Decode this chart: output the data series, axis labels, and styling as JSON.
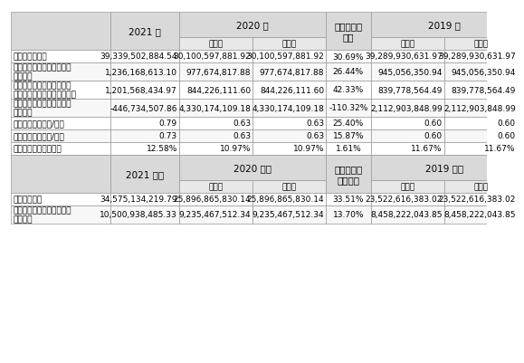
{
  "header_bg": "#d9d9d9",
  "subheader_bg": "#e8e8e8",
  "row_bg_odd": "#ffffff",
  "row_bg_even": "#f5f5f5",
  "border_color": "#999999",
  "text_color": "#000000",
  "font_size": 6.5,
  "header_font_size": 7.5,
  "col_headers_row1": [
    "",
    "2021 年",
    "2020 年",
    "",
    "本年比上年\n增减",
    "2019 年",
    ""
  ],
  "col_headers_row2": [
    "",
    "",
    "调整前",
    "调整后",
    "调整后",
    "调整前",
    "调整后"
  ],
  "col_headers2_row1": [
    "",
    "2021 年末",
    "2020 年末",
    "",
    "本年末比上\n年末增减",
    "2019 年末",
    ""
  ],
  "col_headers2_row2": [
    "",
    "",
    "调整前",
    "调整后",
    "调整后",
    "调整前",
    "调整后"
  ],
  "rows1": [
    [
      "营业收入（元）",
      "39,339,502,884.54",
      "30,100,597,881.92",
      "30,100,597,881.92",
      "30.69%",
      "39,289,930,631.97",
      "39,289,930,631.97"
    ],
    [
      "归属于上市公司股东的净利\n润（元）",
      "1,236,168,613.10",
      "977,674,817.88",
      "977,674,817.88",
      "26.44%",
      "945,056,350.94",
      "945,056,350.94"
    ],
    [
      "归属于上市公司股东的扣除\n非经常性损益的净利润（元）",
      "1,201,568,434.97",
      "844,226,111.60",
      "844,226,111.60",
      "42.33%",
      "839,778,564.49",
      "839,778,564.49"
    ],
    [
      "经营活动产生的现金流量净\n额（元）",
      "-446,734,507.86",
      "4,330,174,109.18",
      "4,330,174,109.18",
      "-110.32%",
      "2,112,903,848.99",
      "2,112,903,848.99"
    ],
    [
      "基本每股收益（元/股）",
      "0.79",
      "0.63",
      "0.63",
      "25.40%",
      "0.60",
      "0.60"
    ],
    [
      "稀释每股收益（元/股）",
      "0.73",
      "0.63",
      "0.63",
      "15.87%",
      "0.60",
      "0.60"
    ],
    [
      "加权平均净资产收益率",
      "12.58%",
      "10.97%",
      "10.97%",
      "1.61%",
      "11.67%",
      "11.67%"
    ]
  ],
  "rows2": [
    [
      "总资产（元）",
      "34,575,134,219.79",
      "25,896,865,830.14",
      "25,896,865,830.14",
      "33.51%",
      "23,522,616,383.02",
      "23,522,616,383.02"
    ],
    [
      "归属于上市公司股东的净资\n产（元）",
      "10,500,938,485.33",
      "9,235,467,512.34",
      "9,235,467,512.34",
      "13.70%",
      "8,458,222,043.85",
      "8,458,222,043.85"
    ]
  ]
}
